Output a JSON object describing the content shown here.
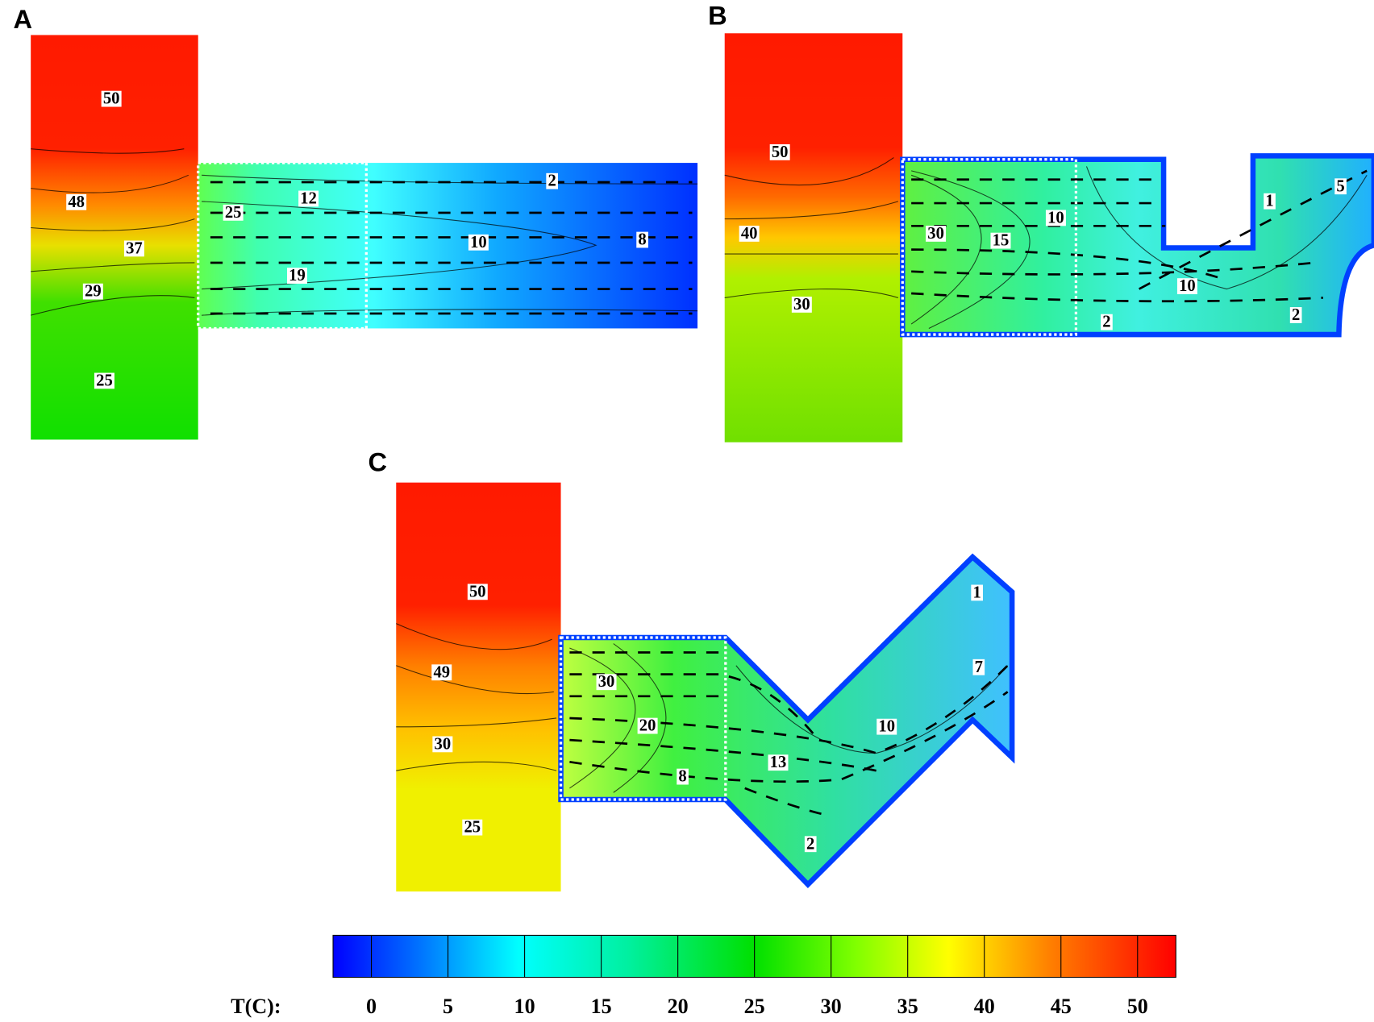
{
  "panels": [
    {
      "label": "A",
      "contour_labels": [
        "50",
        "48",
        "37",
        "29",
        "25",
        "25",
        "12",
        "19",
        "2",
        "10",
        "8"
      ]
    },
    {
      "label": "B",
      "contour_labels": [
        "50",
        "40",
        "30",
        "30",
        "15",
        "10",
        "1",
        "5",
        "10",
        "2",
        "2"
      ]
    },
    {
      "label": "C",
      "contour_labels": [
        "50",
        "49",
        "30",
        "25",
        "30",
        "20",
        "8",
        "13",
        "10",
        "1",
        "7",
        "2"
      ]
    }
  ],
  "colorbar": {
    "label": "T(C):",
    "lim": [
      -2.5,
      52.5
    ],
    "ticks": [
      0,
      5,
      10,
      15,
      20,
      25,
      30,
      35,
      40,
      45,
      50
    ]
  }
}
